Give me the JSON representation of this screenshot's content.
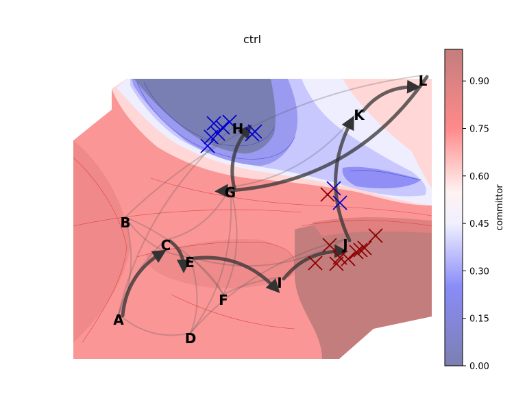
{
  "chart_data": {
    "type": "contour",
    "title": "ctrl",
    "colorbar": {
      "label": "committor",
      "range": [
        0.0,
        1.0
      ],
      "ticks": [
        "0.00",
        "0.15",
        "0.30",
        "0.45",
        "0.60",
        "0.75",
        "0.90"
      ],
      "tick_values": [
        0.0,
        0.15,
        0.3,
        0.45,
        0.6,
        0.75,
        0.9
      ],
      "colormap": "bwr",
      "alpha": 0.5,
      "low_color": "#0000ff",
      "high_color": "#ff0000"
    },
    "grid": false,
    "axes_visible": false,
    "nodes": [
      "A",
      "B",
      "C",
      "D",
      "E",
      "F",
      "G",
      "H",
      "I",
      "J",
      "K",
      "L"
    ],
    "main_path": [
      "A",
      "C",
      "E",
      "I",
      "J",
      "K",
      "L",
      "G",
      "H"
    ],
    "faint_connections": [
      [
        "A",
        "B"
      ],
      [
        "A",
        "H"
      ],
      [
        "A",
        "D"
      ],
      [
        "A",
        "C"
      ],
      [
        "B",
        "E"
      ],
      [
        "B",
        "F"
      ],
      [
        "C",
        "G"
      ],
      [
        "E",
        "D"
      ],
      [
        "E",
        "J"
      ],
      [
        "E",
        "F"
      ],
      [
        "F",
        "G"
      ],
      [
        "D",
        "J"
      ],
      [
        "D",
        "G"
      ],
      [
        "F",
        "I"
      ],
      [
        "G",
        "K"
      ],
      [
        "B",
        "L"
      ]
    ],
    "markers": [
      {
        "color": "#0000cc",
        "region": "H",
        "count": 8
      },
      {
        "color": "#0000cc",
        "region": "G-to-J basin",
        "count": 2
      },
      {
        "color": "#8b0000",
        "region": "J",
        "count": 9
      },
      {
        "color": "#8b0000",
        "region": "G-to-J basin",
        "count": 1
      }
    ]
  }
}
